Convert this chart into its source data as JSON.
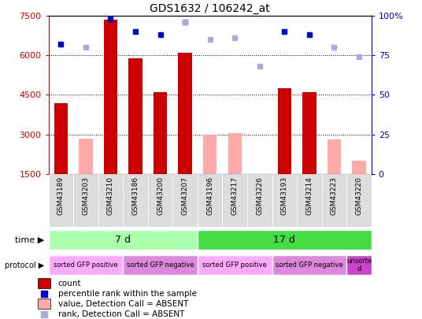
{
  "title": "GDS1632 / 106242_at",
  "samples": [
    "GSM43189",
    "GSM43203",
    "GSM43210",
    "GSM43186",
    "GSM43200",
    "GSM43207",
    "GSM43196",
    "GSM43217",
    "GSM43226",
    "GSM43193",
    "GSM43214",
    "GSM43223",
    "GSM43220"
  ],
  "count_values": [
    4200,
    null,
    7350,
    5900,
    4600,
    6100,
    null,
    null,
    null,
    4750,
    4600,
    null,
    null
  ],
  "count_absent": [
    null,
    2850,
    null,
    null,
    null,
    null,
    3000,
    3050,
    null,
    null,
    null,
    2800,
    2000
  ],
  "rank_present_pct": [
    82,
    null,
    98,
    90,
    88,
    96,
    null,
    null,
    null,
    90,
    88,
    null,
    null
  ],
  "rank_absent_pct": [
    null,
    80,
    null,
    null,
    null,
    96,
    85,
    86,
    68,
    null,
    null,
    80,
    74
  ],
  "ylim_left": [
    1500,
    7500
  ],
  "ylim_right": [
    0,
    100
  ],
  "left_ticks": [
    1500,
    3000,
    4500,
    6000,
    7500
  ],
  "right_ticks": [
    0,
    25,
    50,
    75,
    100
  ],
  "time_groups": [
    {
      "label": "7 d",
      "start": 0,
      "end": 6,
      "color": "#aaffaa"
    },
    {
      "label": "17 d",
      "start": 6,
      "end": 13,
      "color": "#44dd44"
    }
  ],
  "protocol_groups": [
    {
      "label": "sorted GFP positive",
      "start": 0,
      "end": 3,
      "color": "#ffaaff"
    },
    {
      "label": "sorted GFP negative",
      "start": 3,
      "end": 6,
      "color": "#dd88dd"
    },
    {
      "label": "sorted GFP positive",
      "start": 6,
      "end": 9,
      "color": "#ffaaff"
    },
    {
      "label": "sorted GFP negative",
      "start": 9,
      "end": 12,
      "color": "#dd88dd"
    },
    {
      "label": "unsorte\nd",
      "start": 12,
      "end": 13,
      "color": "#cc44cc"
    }
  ],
  "bar_color_present": "#cc0000",
  "bar_color_absent": "#ffaaaa",
  "dot_color_present": "#0000cc",
  "dot_color_absent": "#aaaadd",
  "bg_color": "#ffffff",
  "axis_color_left": "#cc0000",
  "axis_color_right": "#0000cc",
  "label_time": "time",
  "label_protocol": "protocol",
  "legend_items": [
    {
      "type": "rect",
      "color": "#cc0000",
      "label": "count"
    },
    {
      "type": "square",
      "color": "#0000cc",
      "label": "percentile rank within the sample"
    },
    {
      "type": "rect",
      "color": "#ffaaaa",
      "label": "value, Detection Call = ABSENT"
    },
    {
      "type": "square",
      "color": "#aaaadd",
      "label": "rank, Detection Call = ABSENT"
    }
  ]
}
